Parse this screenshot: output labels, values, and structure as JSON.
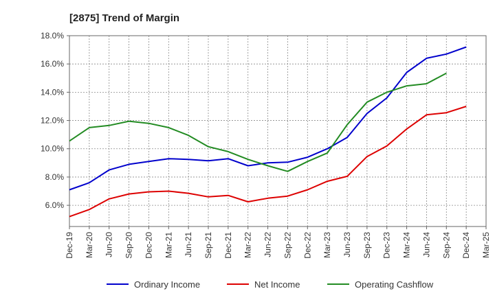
{
  "chart_data": {
    "type": "line",
    "title": "[2875]  Trend of Margin",
    "xlabel": "",
    "ylabel": "",
    "x": [
      "Dec-19",
      "Mar-20",
      "Jun-20",
      "Sep-20",
      "Dec-20",
      "Mar-21",
      "Jun-21",
      "Sep-21",
      "Dec-21",
      "Mar-22",
      "Jun-22",
      "Sep-22",
      "Dec-22",
      "Mar-23",
      "Jun-23",
      "Sep-23",
      "Dec-23",
      "Mar-24",
      "Jun-24",
      "Sep-24",
      "Dec-24",
      "Mar-25"
    ],
    "ylim": [
      4.5,
      18.0
    ],
    "yticks": [
      6.0,
      8.0,
      10.0,
      12.0,
      14.0,
      16.0,
      18.0
    ],
    "ytick_labels": [
      "6.0%",
      "8.0%",
      "10.0%",
      "12.0%",
      "14.0%",
      "16.0%",
      "18.0%"
    ],
    "grid": true,
    "legend_position": "bottom",
    "series": [
      {
        "name": "Ordinary Income",
        "color": "#0000cc",
        "values": [
          7.1,
          7.6,
          8.5,
          8.9,
          9.1,
          9.3,
          9.25,
          9.15,
          9.3,
          8.8,
          9.0,
          9.05,
          9.4,
          10.0,
          10.8,
          12.5,
          13.6,
          15.4,
          16.4,
          16.7,
          17.2,
          null
        ]
      },
      {
        "name": "Net Income",
        "color": "#dd0000",
        "values": [
          5.2,
          5.7,
          6.45,
          6.8,
          6.95,
          7.0,
          6.85,
          6.6,
          6.7,
          6.25,
          6.5,
          6.65,
          7.1,
          7.7,
          8.05,
          9.45,
          10.2,
          11.4,
          12.4,
          12.55,
          13.0,
          null
        ]
      },
      {
        "name": "Operating Cashflow",
        "color": "#228b22",
        "values": [
          10.55,
          11.5,
          11.65,
          11.95,
          11.8,
          11.5,
          10.95,
          10.15,
          9.8,
          9.25,
          8.8,
          8.4,
          9.1,
          9.7,
          11.7,
          13.3,
          14.0,
          14.45,
          14.6,
          15.35,
          null,
          null
        ]
      }
    ]
  }
}
